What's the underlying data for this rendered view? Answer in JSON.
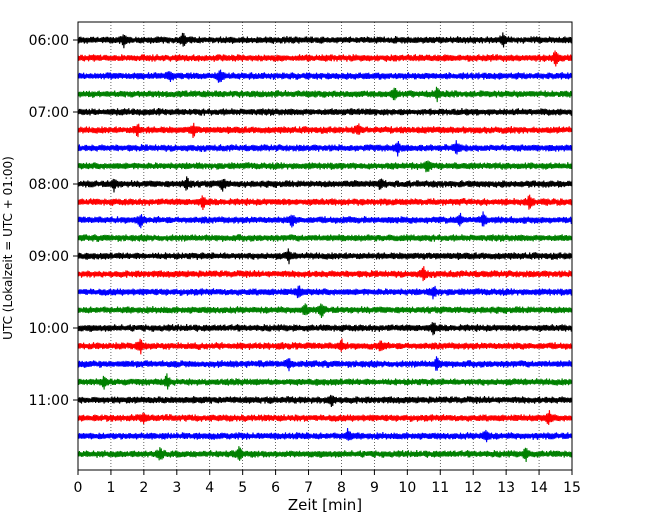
{
  "chart_data": {
    "type": "line",
    "title": "",
    "xlabel": "Zeit  [min]",
    "ylabel": "UTC (Lokalzeit = UTC + 01:00)",
    "xlim": [
      0,
      15
    ],
    "x_ticks": [
      0,
      1,
      2,
      3,
      4,
      5,
      6,
      7,
      8,
      9,
      10,
      11,
      12,
      13,
      14,
      15
    ],
    "y_tick_labels": [
      "06:00",
      "07:00",
      "08:00",
      "09:00",
      "10:00",
      "11:00"
    ],
    "grid": "vertical dotted",
    "trace_interval_minutes": 15,
    "trace_start": "06:00",
    "trace_colors": [
      "#000000",
      "#ff0000",
      "#0000ff",
      "#008000"
    ],
    "rows": [
      {
        "start": "06:00",
        "color": "#000000",
        "spikes": [
          1.4,
          3.2,
          12.9
        ]
      },
      {
        "start": "06:15",
        "color": "#ff0000",
        "spikes": [
          14.5
        ]
      },
      {
        "start": "06:30",
        "color": "#0000ff",
        "spikes": [
          2.8,
          4.3
        ]
      },
      {
        "start": "06:45",
        "color": "#008000",
        "spikes": [
          9.6,
          10.9
        ]
      },
      {
        "start": "07:00",
        "color": "#000000",
        "spikes": []
      },
      {
        "start": "07:15",
        "color": "#ff0000",
        "spikes": [
          1.8,
          3.5,
          8.5
        ]
      },
      {
        "start": "07:30",
        "color": "#0000ff",
        "spikes": [
          9.7,
          11.5
        ]
      },
      {
        "start": "07:45",
        "color": "#008000",
        "spikes": [
          10.6
        ]
      },
      {
        "start": "08:00",
        "color": "#000000",
        "spikes": [
          1.1,
          3.3,
          4.4,
          9.2
        ]
      },
      {
        "start": "08:15",
        "color": "#ff0000",
        "spikes": [
          3.8,
          13.7
        ]
      },
      {
        "start": "08:30",
        "color": "#0000ff",
        "spikes": [
          1.9,
          6.5,
          11.6,
          12.3
        ]
      },
      {
        "start": "08:45",
        "color": "#008000",
        "spikes": []
      },
      {
        "start": "09:00",
        "color": "#000000",
        "spikes": [
          6.4
        ]
      },
      {
        "start": "09:15",
        "color": "#ff0000",
        "spikes": [
          10.5
        ]
      },
      {
        "start": "09:30",
        "color": "#0000ff",
        "spikes": [
          6.7,
          10.8
        ]
      },
      {
        "start": "09:45",
        "color": "#008000",
        "spikes": [
          6.9,
          7.4
        ]
      },
      {
        "start": "10:00",
        "color": "#000000",
        "spikes": [
          10.8
        ]
      },
      {
        "start": "10:15",
        "color": "#ff0000",
        "spikes": [
          1.9,
          8.0,
          9.2
        ]
      },
      {
        "start": "10:30",
        "color": "#0000ff",
        "spikes": [
          6.4,
          10.9
        ]
      },
      {
        "start": "10:45",
        "color": "#008000",
        "spikes": [
          0.8,
          2.7
        ]
      },
      {
        "start": "11:00",
        "color": "#000000",
        "spikes": [
          7.7
        ]
      },
      {
        "start": "11:15",
        "color": "#ff0000",
        "spikes": [
          2.0,
          14.3
        ]
      },
      {
        "start": "11:30",
        "color": "#0000ff",
        "spikes": [
          8.2,
          12.4
        ]
      },
      {
        "start": "11:45",
        "color": "#008000",
        "spikes": [
          2.5,
          4.9,
          13.6
        ]
      }
    ]
  }
}
